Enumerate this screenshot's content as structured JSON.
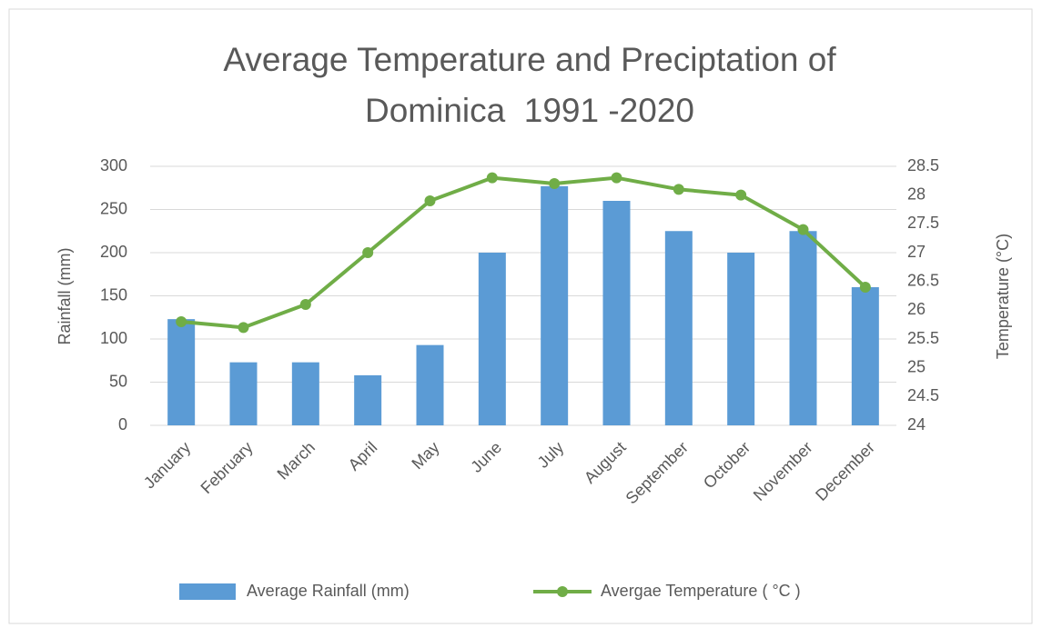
{
  "chart_data": {
    "type": "bar",
    "title": "Average Temperature and Preciptation of Dominica  1991 -2020",
    "y_label": "Rainfall (mm)",
    "y2_label": "Temperature  (°C)",
    "categories": [
      "January",
      "February",
      "March",
      "April",
      "May",
      "June",
      "July",
      "August",
      "September",
      "October",
      "November",
      "December"
    ],
    "series": [
      {
        "name": "Average Rainfall (mm)",
        "type": "bar",
        "color": "#5b9bd5",
        "values": [
          123,
          73,
          73,
          58,
          93,
          200,
          277,
          260,
          225,
          200,
          225,
          160
        ]
      },
      {
        "name": "Avergae Temperature ( °C )",
        "type": "line",
        "axis": "y2",
        "color": "#70ad47",
        "values": [
          25.8,
          25.7,
          26.1,
          27.0,
          27.9,
          28.3,
          28.2,
          28.3,
          28.1,
          28.0,
          27.4,
          26.4
        ]
      }
    ],
    "ylim": [
      0,
      300
    ],
    "yticks": [
      0,
      50,
      100,
      150,
      200,
      250,
      300
    ],
    "y2lim": [
      24,
      28.5
    ],
    "y2ticks": [
      24,
      24.5,
      25,
      25.5,
      26,
      26.5,
      27,
      27.5,
      28,
      28.5
    ],
    "grid": true,
    "legend": "bottom"
  }
}
